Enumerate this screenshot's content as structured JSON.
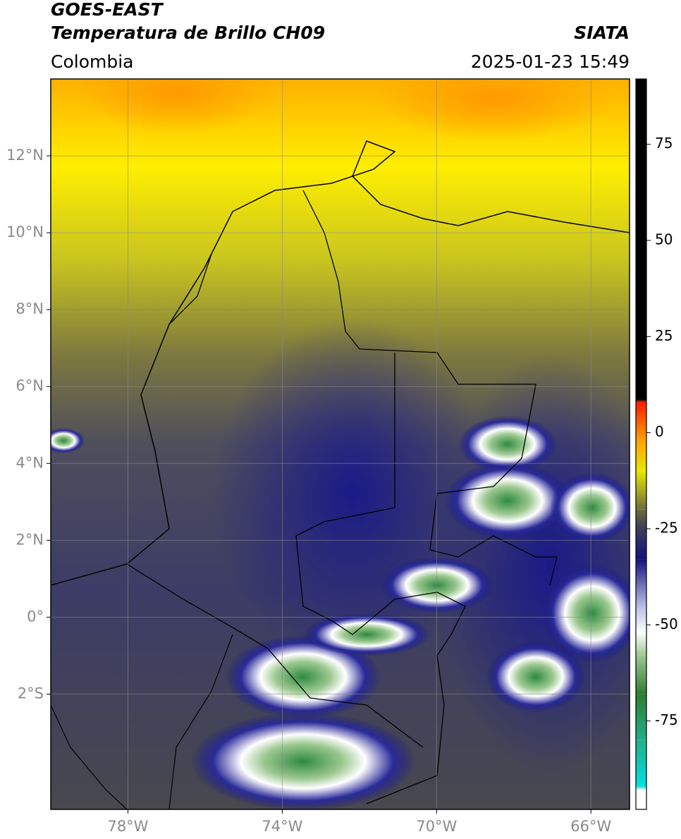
{
  "header": {
    "title": "GOES-EAST",
    "subtitle": "Temperatura de Brillo CH09",
    "source": "SIATA",
    "region": "Colombia",
    "timestamp": "2025-01-23 15:49"
  },
  "map": {
    "xlim": [
      -80,
      -65
    ],
    "ylim": [
      -5,
      14
    ],
    "xticks": [
      {
        "value": -78,
        "label": "78°W"
      },
      {
        "value": -74,
        "label": "74°W"
      },
      {
        "value": -70,
        "label": "70°W"
      },
      {
        "value": -66,
        "label": "66°W"
      }
    ],
    "yticks": [
      {
        "value": 12,
        "label": "12°N"
      },
      {
        "value": 10,
        "label": "10°N"
      },
      {
        "value": 8,
        "label": "8°N"
      },
      {
        "value": 6,
        "label": "6°N"
      },
      {
        "value": 4,
        "label": "4°N"
      },
      {
        "value": 2,
        "label": "2°N"
      },
      {
        "value": 0,
        "label": "0°"
      },
      {
        "value": -2,
        "label": "2°S"
      }
    ],
    "grid": true
  },
  "colorbar": {
    "lim": [
      -98,
      92
    ],
    "ticks": [
      75,
      50,
      25,
      0,
      -25,
      -50,
      -75
    ],
    "stops": [
      {
        "value": -98,
        "color": "#ffffff"
      },
      {
        "value": -93,
        "color": "#ffffff"
      },
      {
        "value": -92,
        "color": "#00e0e0"
      },
      {
        "value": -80,
        "color": "#20b08a"
      },
      {
        "value": -68,
        "color": "#2e7d32"
      },
      {
        "value": -58,
        "color": "#9cc890"
      },
      {
        "value": -52,
        "color": "#ffffff"
      },
      {
        "value": -45,
        "color": "#b4bce4"
      },
      {
        "value": -33,
        "color": "#14147e"
      },
      {
        "value": -25,
        "color": "#3c3c5a"
      },
      {
        "value": -20,
        "color": "#6e6c3c"
      },
      {
        "value": -10,
        "color": "#e8e800"
      },
      {
        "value": -2,
        "color": "#ffa000"
      },
      {
        "value": 8,
        "color": "#ff1a00"
      },
      {
        "value": 8.5,
        "color": "#000000"
      },
      {
        "value": 92,
        "color": "#000000"
      }
    ]
  }
}
